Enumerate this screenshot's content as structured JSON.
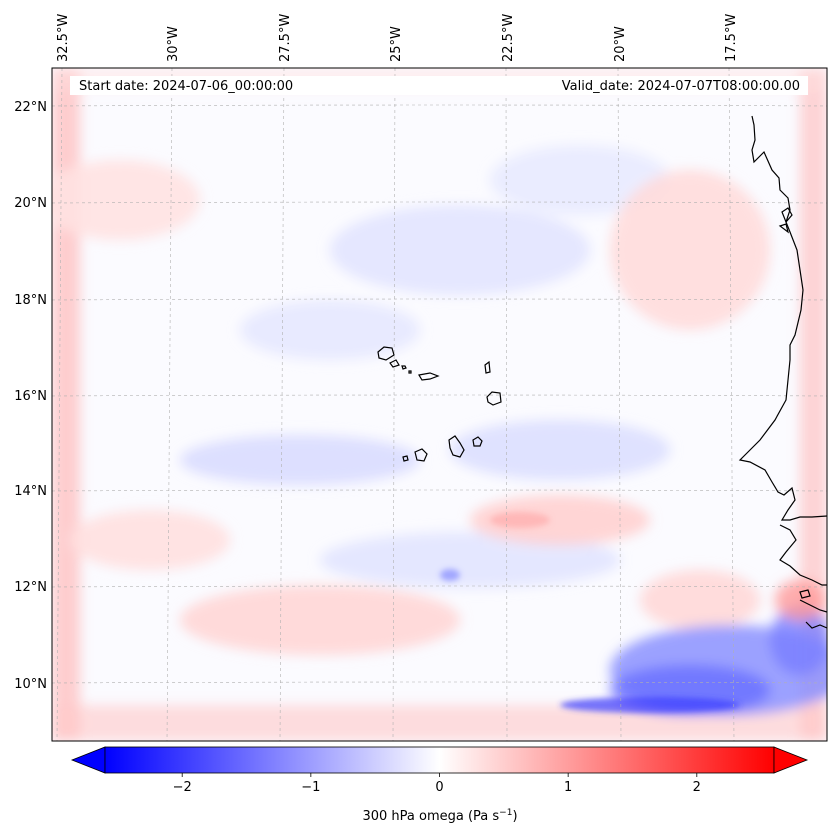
{
  "header": {
    "start_date": "Start date: 2024-07-06_00:00:00",
    "valid_date": "Valid_date: 2024-07-07T08:00:00.00"
  },
  "map": {
    "longitude_labels": [
      "32.5°W",
      "30°W",
      "27.5°W",
      "25°W",
      "22.5°W",
      "20°W",
      "17.5°W"
    ],
    "latitude_labels": [
      "22°N",
      "20°N",
      "18°N",
      "16°N",
      "14°N",
      "12°N",
      "10°N"
    ],
    "gridline_color": "#b0b0b0",
    "coastline_color": "#000000"
  },
  "colorbar": {
    "label": "300 hPa omega (Pa s",
    "label_exp": "−1",
    "label_end": ")",
    "tick_labels": [
      "−2",
      "−1",
      "0",
      "1",
      "2"
    ],
    "ticks": [
      -2,
      -1,
      0,
      1,
      2
    ],
    "range": [
      -2.6,
      2.6
    ],
    "min_color": "#0000ff",
    "mid_color": "#ffffff",
    "max_color": "#ff0000"
  }
}
